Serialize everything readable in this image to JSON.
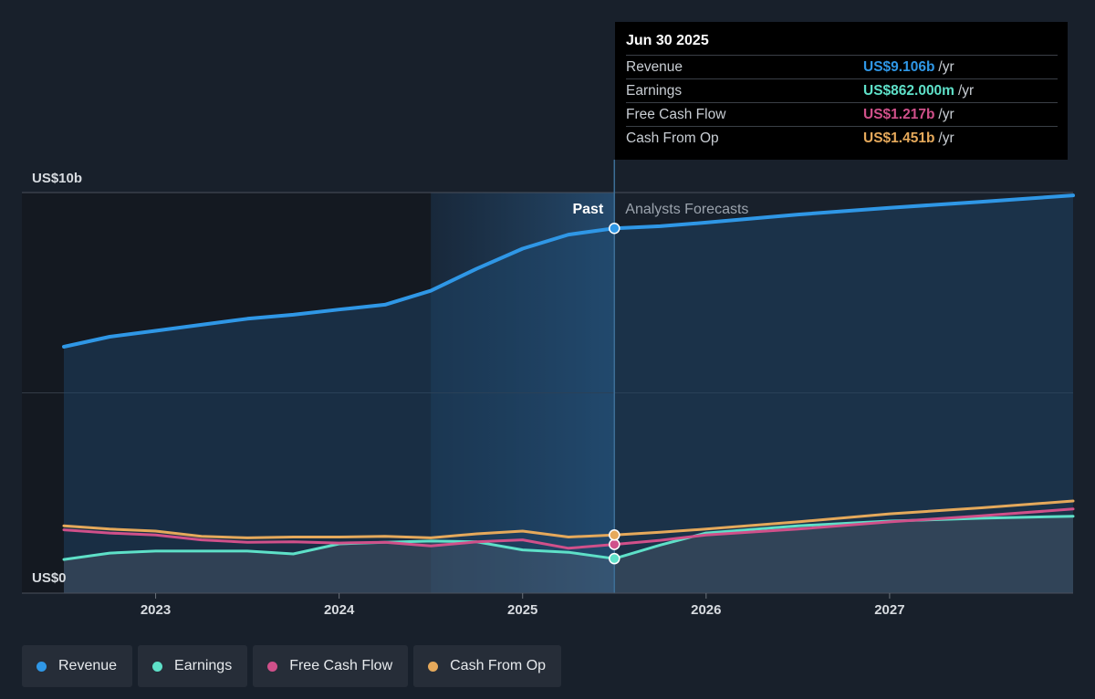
{
  "chart_data": {
    "type": "line",
    "y_unit_label_top": "US$10b",
    "y_unit_label_bottom": "US$0",
    "ylim": [
      0,
      10
    ],
    "xlim": [
      2022.5,
      2028.0
    ],
    "x_ticks": [
      {
        "value": 2023,
        "label": "2023"
      },
      {
        "value": 2024,
        "label": "2024"
      },
      {
        "value": 2025,
        "label": "2025"
      },
      {
        "value": 2026,
        "label": "2026"
      },
      {
        "value": 2027,
        "label": "2027"
      }
    ],
    "divider_x": 2025.5,
    "highlight_start_x": 2024.5,
    "past_label": "Past",
    "forecast_label": "Analysts Forecasts",
    "grid": true,
    "series": [
      {
        "name": "Revenue",
        "color": "#2f97e6",
        "fill": true,
        "points": [
          [
            2022.5,
            6.15
          ],
          [
            2022.75,
            6.4
          ],
          [
            2023.0,
            6.55
          ],
          [
            2023.25,
            6.7
          ],
          [
            2023.5,
            6.85
          ],
          [
            2023.75,
            6.95
          ],
          [
            2024.0,
            7.08
          ],
          [
            2024.25,
            7.2
          ],
          [
            2024.5,
            7.55
          ],
          [
            2024.75,
            8.1
          ],
          [
            2025.0,
            8.6
          ],
          [
            2025.25,
            8.95
          ],
          [
            2025.5,
            9.106
          ],
          [
            2025.75,
            9.16
          ],
          [
            2026.0,
            9.25
          ],
          [
            2026.5,
            9.45
          ],
          [
            2027.0,
            9.62
          ],
          [
            2027.5,
            9.77
          ],
          [
            2028.0,
            9.93
          ]
        ]
      },
      {
        "name": "Earnings",
        "color": "#5ee0c8",
        "fill": true,
        "points": [
          [
            2022.5,
            0.84
          ],
          [
            2022.75,
            1.0
          ],
          [
            2023.0,
            1.05
          ],
          [
            2023.5,
            1.05
          ],
          [
            2023.75,
            0.98
          ],
          [
            2024.0,
            1.23
          ],
          [
            2024.25,
            1.27
          ],
          [
            2024.5,
            1.3
          ],
          [
            2024.75,
            1.28
          ],
          [
            2025.0,
            1.08
          ],
          [
            2025.25,
            1.02
          ],
          [
            2025.5,
            0.862
          ],
          [
            2025.75,
            1.2
          ],
          [
            2026.0,
            1.5
          ],
          [
            2026.5,
            1.68
          ],
          [
            2027.0,
            1.8
          ],
          [
            2027.5,
            1.87
          ],
          [
            2028.0,
            1.92
          ]
        ]
      },
      {
        "name": "Free Cash Flow",
        "color": "#d0508a",
        "fill": false,
        "points": [
          [
            2022.5,
            1.58
          ],
          [
            2022.75,
            1.5
          ],
          [
            2023.0,
            1.45
          ],
          [
            2023.25,
            1.33
          ],
          [
            2023.5,
            1.27
          ],
          [
            2023.75,
            1.28
          ],
          [
            2024.0,
            1.25
          ],
          [
            2024.25,
            1.27
          ],
          [
            2024.5,
            1.18
          ],
          [
            2024.75,
            1.28
          ],
          [
            2025.0,
            1.33
          ],
          [
            2025.25,
            1.12
          ],
          [
            2025.5,
            1.217
          ],
          [
            2025.75,
            1.32
          ],
          [
            2026.0,
            1.45
          ],
          [
            2026.5,
            1.6
          ],
          [
            2027.0,
            1.78
          ],
          [
            2027.5,
            1.93
          ],
          [
            2028.0,
            2.1
          ]
        ]
      },
      {
        "name": "Cash From Op",
        "color": "#e5a95b",
        "fill": false,
        "points": [
          [
            2022.5,
            1.68
          ],
          [
            2022.75,
            1.6
          ],
          [
            2023.0,
            1.55
          ],
          [
            2023.25,
            1.42
          ],
          [
            2023.5,
            1.38
          ],
          [
            2023.75,
            1.4
          ],
          [
            2024.0,
            1.4
          ],
          [
            2024.25,
            1.42
          ],
          [
            2024.5,
            1.38
          ],
          [
            2024.75,
            1.48
          ],
          [
            2025.0,
            1.55
          ],
          [
            2025.25,
            1.4
          ],
          [
            2025.5,
            1.451
          ],
          [
            2025.75,
            1.52
          ],
          [
            2026.0,
            1.6
          ],
          [
            2026.5,
            1.78
          ],
          [
            2027.0,
            1.98
          ],
          [
            2027.5,
            2.13
          ],
          [
            2028.0,
            2.3
          ]
        ]
      }
    ]
  },
  "tooltip": {
    "date": "Jun 30 2025",
    "rows": [
      {
        "name": "Revenue",
        "value": "US$9.106b",
        "unit": "/yr",
        "color": "#2f97e6"
      },
      {
        "name": "Earnings",
        "value": "US$862.000m",
        "unit": "/yr",
        "color": "#5ee0c8"
      },
      {
        "name": "Free Cash Flow",
        "value": "US$1.217b",
        "unit": "/yr",
        "color": "#d0508a"
      },
      {
        "name": "Cash From Op",
        "value": "US$1.451b",
        "unit": "/yr",
        "color": "#e5a95b"
      }
    ]
  },
  "legend": [
    {
      "label": "Revenue",
      "color": "#2f97e6"
    },
    {
      "label": "Earnings",
      "color": "#5ee0c8"
    },
    {
      "label": "Free Cash Flow",
      "color": "#d0508a"
    },
    {
      "label": "Cash From Op",
      "color": "#e5a95b"
    }
  ]
}
